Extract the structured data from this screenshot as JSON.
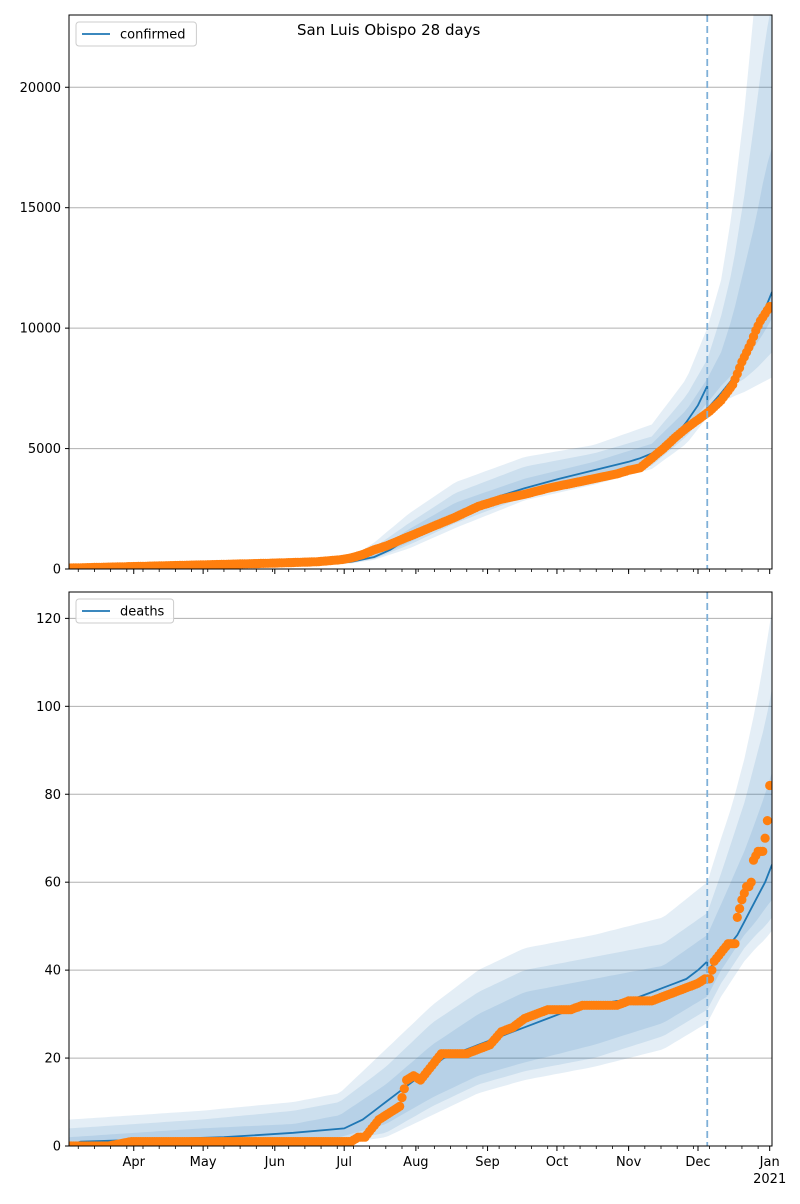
{
  "figure_title": "San Luis Obispo 28 days",
  "colors": {
    "model": "#1f77b4",
    "observed": "#ff7f0e",
    "band": "#1f77b4",
    "grid": "#b0b0b0",
    "forecast_line": "#7fb0d8"
  },
  "x_axis": {
    "month_labels": [
      "Apr",
      "May",
      "Jun",
      "Jul",
      "Aug",
      "Sep",
      "Oct",
      "Nov",
      "Dec",
      "Jan"
    ],
    "month_days": [
      31,
      61,
      92,
      122,
      153,
      184,
      214,
      245,
      275,
      306
    ],
    "year_label": "2021",
    "range_days": [
      3,
      307
    ],
    "forecast_start_day": 279
  },
  "chart_data": [
    {
      "type": "line",
      "name": "confirmed",
      "legend": "confirmed",
      "ylim": [
        0,
        23000
      ],
      "yticks": [
        0,
        5000,
        10000,
        15000,
        20000
      ],
      "ytick_labels": [
        "0",
        "5000",
        "10000",
        "15000",
        "20000"
      ],
      "model_x": [
        3,
        60,
        110,
        125,
        135,
        142,
        150,
        160,
        170,
        180,
        190,
        200,
        215,
        230,
        245,
        250,
        255,
        260,
        265,
        270,
        275,
        279,
        279,
        285,
        290,
        295,
        300,
        304,
        307
      ],
      "model_y": [
        50,
        120,
        200,
        300,
        500,
        800,
        1300,
        1800,
        2300,
        2700,
        3050,
        3350,
        3750,
        4100,
        4450,
        4600,
        4800,
        5100,
        5500,
        6100,
        6800,
        7600,
        6650,
        7300,
        7900,
        8700,
        9800,
        10800,
        11500
      ],
      "band_x": [
        3,
        110,
        125,
        135,
        150,
        170,
        200,
        230,
        255,
        270,
        279,
        285,
        290,
        295,
        300,
        304,
        307
      ],
      "bands": [
        {
          "lower": [
            0,
            150,
            230,
            380,
            850,
            1700,
            2850,
            3500,
            4150,
            5200,
            6300,
            6900,
            7150,
            7350,
            7600,
            7800,
            7950
          ],
          "upper": [
            120,
            270,
            480,
            1100,
            2300,
            3600,
            4650,
            5150,
            6000,
            7900,
            10000,
            12000,
            15000,
            19000,
            24000,
            27000,
            29000
          ]
        },
        {
          "lower": [
            10,
            170,
            250,
            420,
            1000,
            1900,
            3000,
            3650,
            4300,
            5500,
            6550,
            7200,
            7600,
            7900,
            8300,
            8700,
            9000
          ],
          "upper": [
            100,
            240,
            400,
            900,
            1900,
            3150,
            4250,
            4800,
            5500,
            7200,
            8700,
            10500,
            12500,
            15500,
            19000,
            22000,
            23500
          ]
        },
        {
          "lower": [
            25,
            180,
            270,
            450,
            1100,
            2050,
            3150,
            3800,
            4500,
            5800,
            6900,
            7600,
            8100,
            8700,
            9300,
            9900,
            10400
          ],
          "upper": [
            80,
            220,
            350,
            700,
            1650,
            2750,
            3750,
            4450,
            5200,
            6600,
            7900,
            9000,
            10500,
            12500,
            14500,
            16500,
            17500
          ]
        }
      ],
      "observed_x": [
        3,
        30,
        60,
        90,
        110,
        120,
        125,
        130,
        135,
        140,
        145,
        150,
        155,
        160,
        170,
        180,
        190,
        200,
        210,
        220,
        230,
        240,
        245,
        250,
        255,
        260,
        265,
        270,
        275,
        280,
        285,
        290,
        292,
        294,
        296,
        298,
        300,
        302,
        304,
        306
      ],
      "observed_y": [
        40,
        100,
        170,
        240,
        300,
        380,
        460,
        600,
        800,
        950,
        1150,
        1350,
        1550,
        1750,
        2150,
        2600,
        2900,
        3100,
        3350,
        3550,
        3750,
        3950,
        4100,
        4200,
        4600,
        5000,
        5450,
        5850,
        6200,
        6550,
        7000,
        7650,
        8100,
        8600,
        9000,
        9400,
        9900,
        10300,
        10600,
        10900
      ]
    },
    {
      "type": "line",
      "name": "deaths",
      "legend": "deaths",
      "ylim": [
        0,
        126
      ],
      "yticks": [
        0,
        20,
        40,
        60,
        80,
        100,
        120
      ],
      "ytick_labels": [
        "0",
        "20",
        "40",
        "60",
        "80",
        "100",
        "120"
      ],
      "model_x": [
        3,
        8,
        40,
        70,
        100,
        122,
        130,
        135,
        140,
        145,
        150,
        155,
        160,
        165,
        170,
        175,
        180,
        185,
        190,
        200,
        210,
        220,
        230,
        240,
        245,
        250,
        255,
        260,
        265,
        270,
        275,
        279,
        279,
        283,
        286,
        289,
        292,
        295,
        298,
        301,
        304,
        307
      ],
      "model_y": [
        0,
        1,
        1.5,
        2,
        3,
        4,
        6,
        8,
        10,
        12,
        14,
        16,
        18,
        20,
        21,
        22,
        23,
        24,
        25,
        27,
        29,
        31,
        32,
        33,
        33,
        34,
        35,
        36,
        37,
        38,
        40,
        42,
        40,
        42,
        44,
        46,
        48,
        51,
        54,
        57,
        60,
        64
      ],
      "band_x": [
        3,
        60,
        100,
        120,
        140,
        160,
        180,
        200,
        230,
        260,
        279,
        285,
        290,
        295,
        300,
        304,
        307
      ],
      "bands": [
        {
          "lower": [
            0,
            0,
            0,
            0.5,
            2,
            7,
            12,
            15,
            18,
            22,
            28,
            34,
            38,
            42,
            45,
            47,
            49
          ],
          "upper": [
            6,
            8,
            10,
            12,
            22,
            32,
            40,
            45,
            48,
            52,
            60,
            70,
            78,
            88,
            100,
            112,
            122
          ]
        },
        {
          "lower": [
            0,
            0,
            0.5,
            1,
            3,
            9,
            14,
            17,
            20,
            25,
            31,
            37,
            41,
            45,
            48,
            50,
            52
          ],
          "upper": [
            4,
            6,
            8,
            10,
            18,
            28,
            35,
            40,
            43,
            46,
            53,
            62,
            70,
            78,
            88,
            96,
            104
          ]
        },
        {
          "lower": [
            0,
            0.5,
            1,
            2,
            5,
            11,
            16,
            19,
            23,
            28,
            34,
            40,
            44,
            48,
            51,
            54,
            56
          ],
          "upper": [
            2,
            4,
            5,
            7,
            14,
            23,
            30,
            35,
            38,
            41,
            48,
            55,
            61,
            67,
            74,
            80,
            85
          ]
        }
      ],
      "observed_x": [
        3,
        20,
        30,
        60,
        90,
        120,
        125,
        128,
        131,
        134,
        137,
        140,
        143,
        146,
        149,
        152,
        155,
        158,
        161,
        164,
        167,
        170,
        175,
        180,
        185,
        190,
        195,
        200,
        205,
        210,
        215,
        220,
        225,
        230,
        235,
        240,
        245,
        250,
        255,
        260,
        265,
        270,
        275,
        278,
        280,
        282,
        285,
        288,
        291,
        292,
        293,
        294,
        296,
        297,
        298,
        299,
        300,
        301,
        302,
        303,
        304,
        305,
        306
      ],
      "observed_y": [
        0,
        0,
        1,
        1,
        1,
        1,
        1,
        2,
        2,
        4,
        6,
        7,
        8,
        9,
        15,
        16,
        15,
        17,
        19,
        21,
        21,
        21,
        21,
        22,
        23,
        26,
        27,
        29,
        30,
        31,
        31,
        31,
        32,
        32,
        32,
        32,
        33,
        33,
        33,
        34,
        35,
        36,
        37,
        38,
        38,
        42,
        44,
        46,
        46,
        52,
        54,
        56,
        59,
        59,
        60,
        65,
        66,
        67,
        67,
        67,
        70,
        74,
        82
      ]
    }
  ]
}
